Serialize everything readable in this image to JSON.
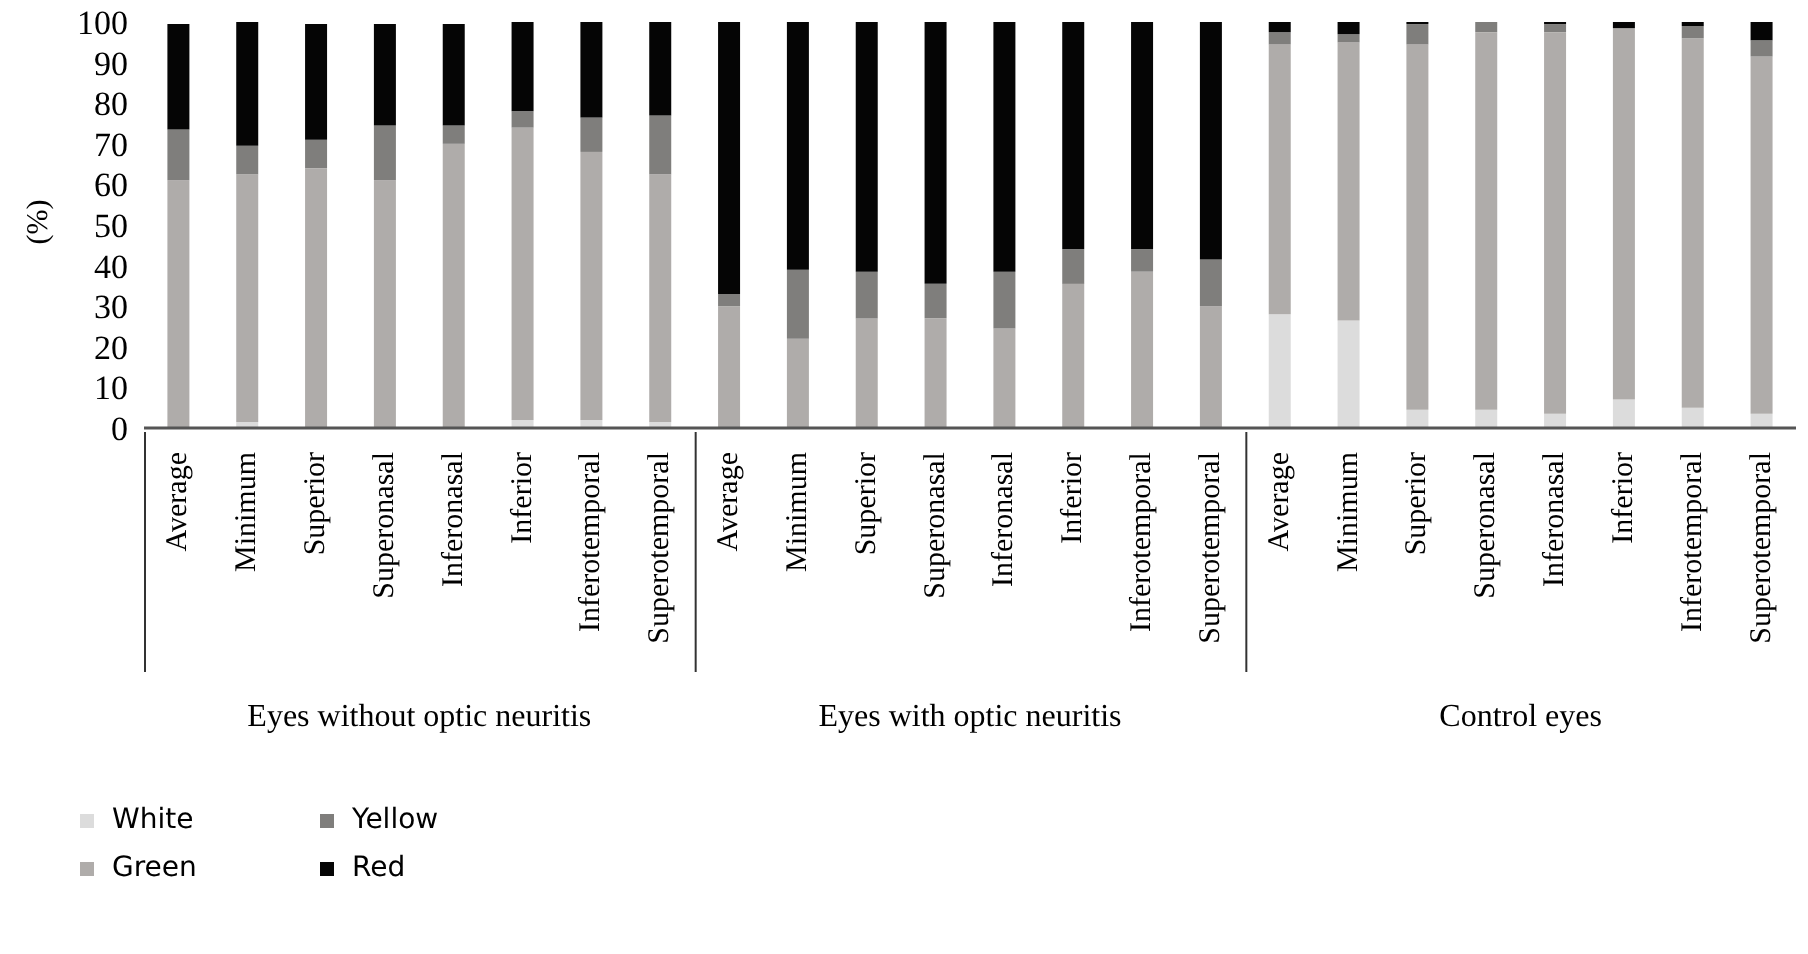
{
  "chart_data": {
    "type": "bar",
    "stacked": true,
    "ylabel": "(%)",
    "categories": [
      "Average",
      "Minimum",
      "Superior",
      "Superonasal",
      "Inferonasal",
      "Inferior",
      "Inferotemporal",
      "Superotemporal",
      "Average",
      "Minimum",
      "Superior",
      "Superonasal",
      "Inferonasal",
      "Inferior",
      "Inferotemporal",
      "Superotemporal",
      "Average",
      "Minimum",
      "Superior",
      "Superonasal",
      "Inferonasal",
      "Inferior",
      "Inferotemporal",
      "Superotemporal"
    ],
    "annotations": [
      "Eyes without optic neuritis",
      "Eyes with optic neuritis",
      "Control eyes"
    ],
    "series": [
      {
        "name": "White",
        "color": "#dcdcdc",
        "values": [
          null,
          1.5,
          null,
          null,
          null,
          2,
          2,
          1.5,
          0,
          0,
          0,
          0,
          0,
          0,
          0,
          0,
          28,
          26.5,
          4.5,
          4.5,
          3.5,
          7,
          5,
          3.5
        ]
      },
      {
        "name": "Green",
        "color": "#afacaa",
        "values": [
          61,
          61,
          64,
          61,
          70,
          72,
          66,
          61,
          30,
          22,
          27,
          27,
          24.5,
          35.5,
          38.5,
          30,
          66.5,
          68.5,
          90,
          93,
          94,
          91.5,
          91,
          88
        ]
      },
      {
        "name": "Yellow",
        "color": "#7f7e7c",
        "values": [
          12.5,
          7,
          7,
          13.5,
          4.5,
          4,
          8.5,
          14.5,
          3,
          17,
          11.5,
          8.5,
          14,
          8.5,
          5.5,
          11.5,
          3,
          2,
          5,
          2.5,
          2,
          0,
          3,
          4
        ]
      },
      {
        "name": "Red",
        "color": "#050505",
        "values": [
          26,
          30.5,
          28.5,
          25,
          25,
          22,
          23.5,
          23,
          67,
          61,
          61.5,
          64.5,
          61.5,
          56,
          56,
          58.5,
          2.5,
          3,
          0.5,
          0,
          0.5,
          1.5,
          1,
          4.5
        ]
      }
    ],
    "ylim": [
      0,
      100
    ],
    "yticks": [
      0,
      10,
      20,
      30,
      40,
      50,
      60,
      70,
      80,
      90,
      100
    ],
    "grid": false,
    "legend": "bottom left"
  }
}
